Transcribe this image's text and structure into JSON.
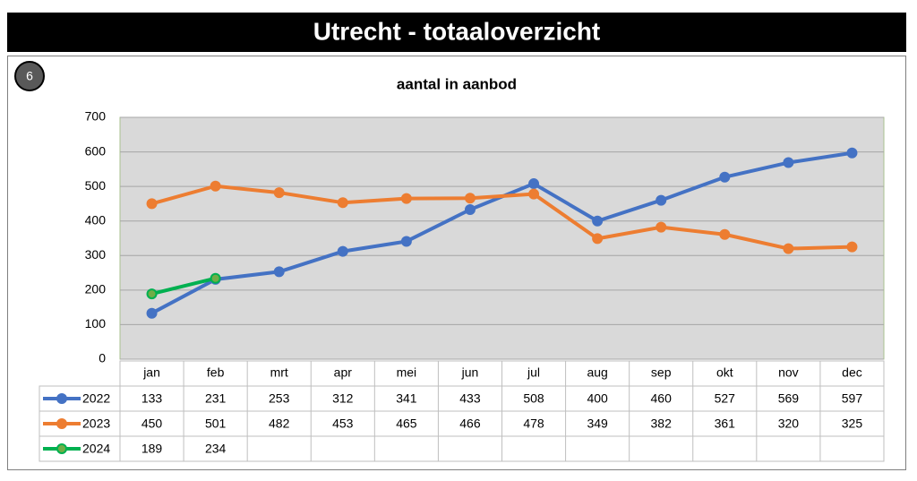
{
  "header": {
    "title": "Utrecht - totaaloverzicht",
    "badge": "6"
  },
  "chart_data": {
    "type": "line",
    "title": "aantal in aanbod",
    "categories": [
      "jan",
      "feb",
      "mrt",
      "apr",
      "mei",
      "jun",
      "jul",
      "aug",
      "sep",
      "okt",
      "nov",
      "dec"
    ],
    "series": [
      {
        "name": "2022",
        "color": "#4472c4",
        "values": [
          133,
          231,
          253,
          312,
          341,
          433,
          508,
          400,
          460,
          527,
          569,
          597
        ]
      },
      {
        "name": "2023",
        "color": "#ed7d31",
        "values": [
          450,
          501,
          482,
          453,
          465,
          466,
          478,
          349,
          382,
          361,
          320,
          325
        ]
      },
      {
        "name": "2024",
        "color": "#00b050",
        "values": [
          189,
          234,
          null,
          null,
          null,
          null,
          null,
          null,
          null,
          null,
          null,
          null
        ]
      }
    ],
    "ylim": [
      0,
      700
    ],
    "yticks": [
      0,
      100,
      200,
      300,
      400,
      500,
      600,
      700
    ],
    "grid": true
  }
}
